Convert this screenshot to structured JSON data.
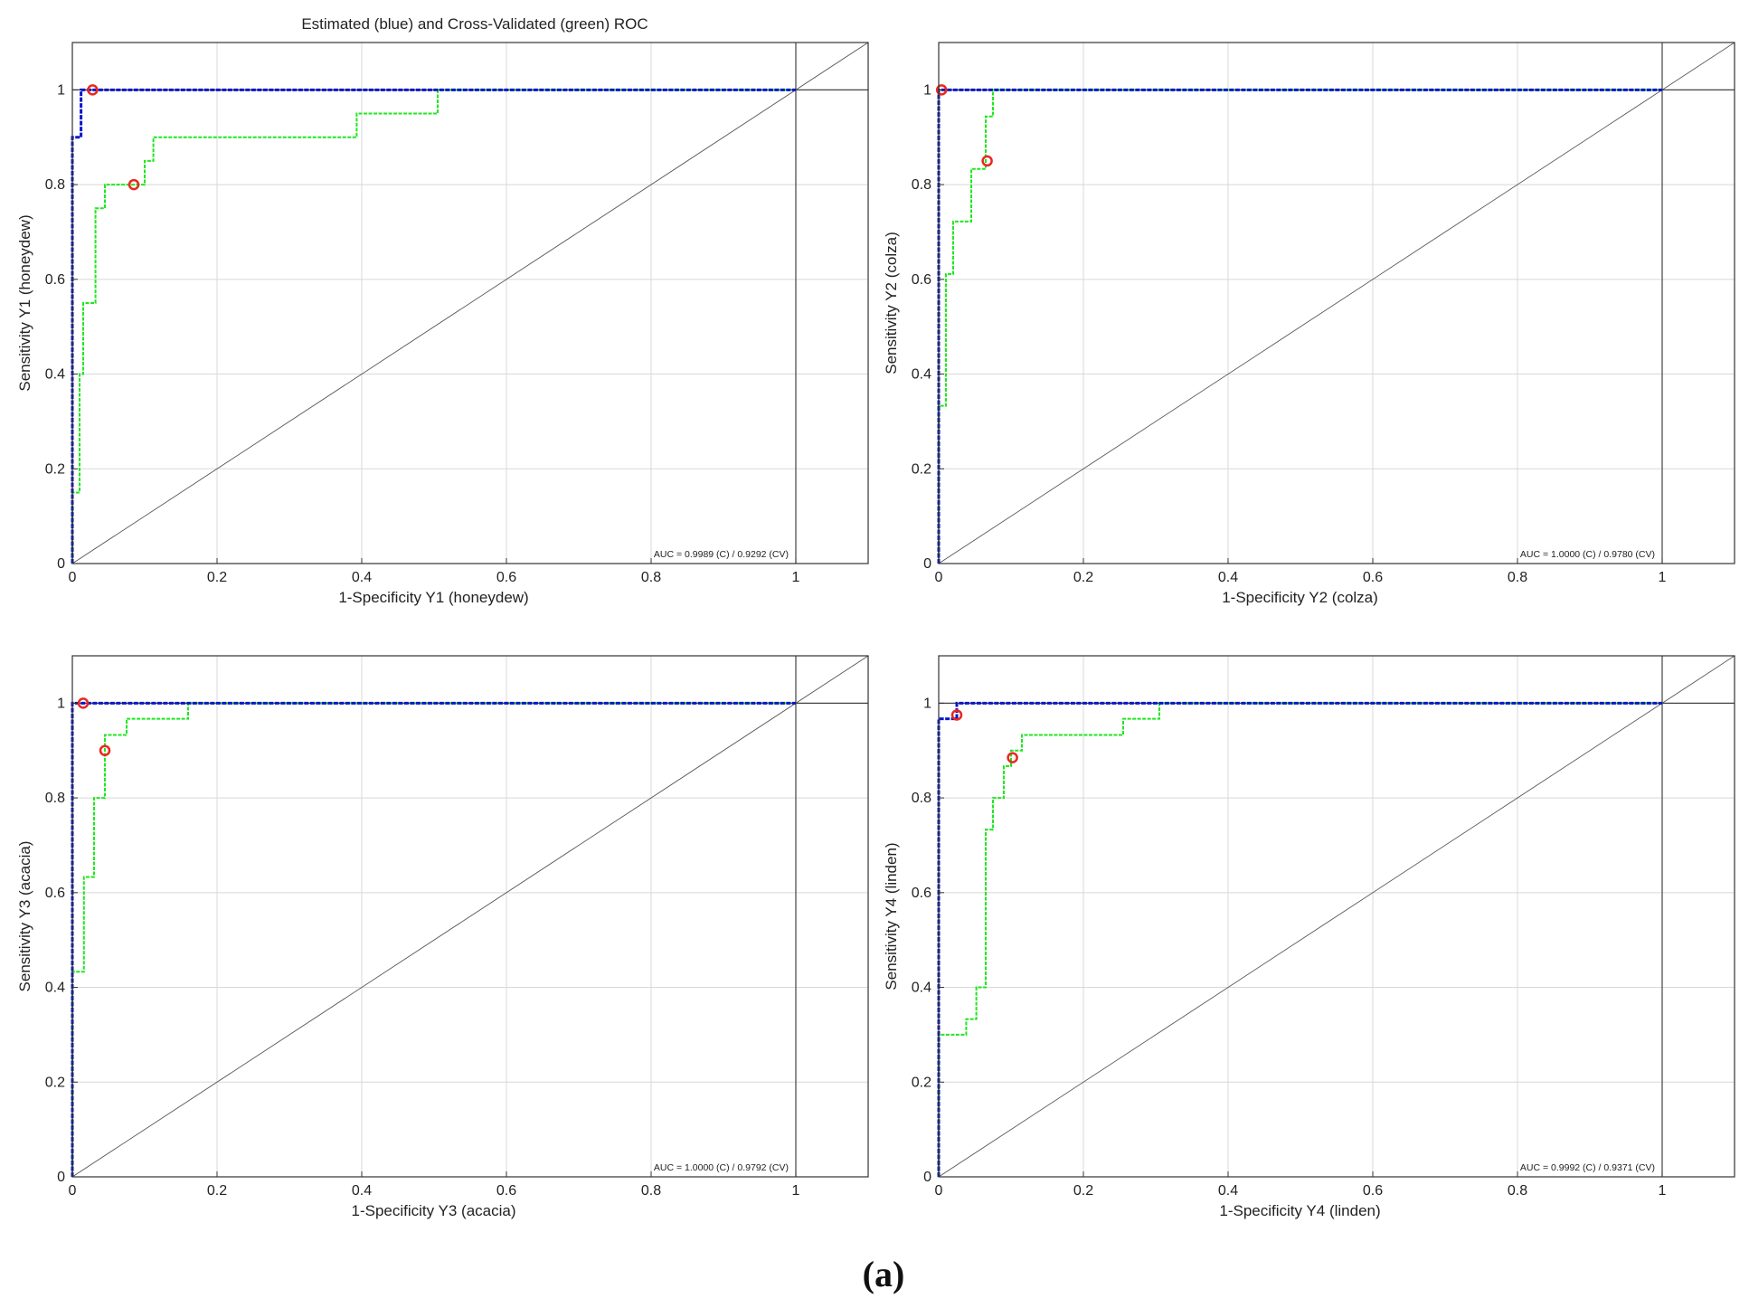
{
  "figure": {
    "title": "Estimated (blue) and Cross-Validated (green) ROC",
    "caption": "(a)",
    "colors": {
      "estimated": "#0a17c8",
      "cross_validated": "#1ee81e",
      "optimal_point": "#e8281e",
      "reference": "#555555",
      "grid": "#d8d8d8",
      "axes": "#333333"
    }
  },
  "chart_data": [
    {
      "type": "line",
      "title": "Estimated (blue) and Cross-Validated (green) ROC",
      "xlabel": "1-Specificity Y1 (honeydew)",
      "ylabel": "Sensitivity Y1 (honeydew)",
      "xlim": [
        0,
        1.1
      ],
      "ylim": [
        0,
        1.1
      ],
      "xticks": [
        0,
        0.2,
        0.4,
        0.6,
        0.8,
        1
      ],
      "yticks": [
        0,
        0.2,
        0.4,
        0.6,
        0.8,
        1
      ],
      "xtick_labels": [
        "0",
        "0.2",
        "0.4",
        "0.6",
        "0.8",
        "1"
      ],
      "ytick_labels": [
        "0",
        "0.2",
        "0.4",
        "0.6",
        "0.8",
        "1"
      ],
      "grid": true,
      "auc_text": "AUC = 0.9989 (C) / 0.9292 (CV)",
      "series": [
        {
          "name": "Estimated",
          "color": "#0a17c8",
          "x": [
            0,
            0,
            0.012,
            0.012,
            1
          ],
          "y": [
            0,
            0.9,
            0.9,
            1,
            1
          ]
        },
        {
          "name": "Cross-Validated",
          "color": "#1ee81e",
          "x": [
            0,
            0,
            0.01,
            0.01,
            0.015,
            0.015,
            0.032,
            0.032,
            0.045,
            0.045,
            0.1,
            0.1,
            0.112,
            0.112,
            0.135,
            0.135,
            0.393,
            0.393,
            0.505,
            0.505,
            1
          ],
          "y": [
            0,
            0.15,
            0.15,
            0.4,
            0.4,
            0.55,
            0.55,
            0.75,
            0.75,
            0.8,
            0.8,
            0.85,
            0.85,
            0.9,
            0.9,
            0.9,
            0.9,
            0.95,
            0.95,
            1,
            1
          ]
        }
      ],
      "optimal_points": [
        {
          "x": 0.028,
          "y": 1.0
        },
        {
          "x": 0.085,
          "y": 0.8
        }
      ]
    },
    {
      "type": "line",
      "xlabel": "1-Specificity Y2 (colza)",
      "ylabel": "Sensitivity Y2 (colza)",
      "xlim": [
        0,
        1.1
      ],
      "ylim": [
        0,
        1.1
      ],
      "xticks": [
        0,
        0.2,
        0.4,
        0.6,
        0.8,
        1
      ],
      "yticks": [
        0,
        0.2,
        0.4,
        0.6,
        0.8,
        1
      ],
      "xtick_labels": [
        "0",
        "0.2",
        "0.4",
        "0.6",
        "0.8",
        "1"
      ],
      "ytick_labels": [
        "0",
        "0.2",
        "0.4",
        "0.6",
        "0.8",
        "1"
      ],
      "grid": true,
      "auc_text": "AUC = 1.0000 (C) / 0.9780 (CV)",
      "series": [
        {
          "name": "Estimated",
          "color": "#0a17c8",
          "x": [
            0,
            0,
            1
          ],
          "y": [
            0,
            1,
            1
          ]
        },
        {
          "name": "Cross-Validated",
          "color": "#1ee81e",
          "x": [
            0,
            0,
            0.01,
            0.01,
            0.02,
            0.02,
            0.045,
            0.045,
            0.065,
            0.065,
            0.075,
            0.075,
            1
          ],
          "y": [
            0,
            0.333,
            0.333,
            0.611,
            0.611,
            0.722,
            0.722,
            0.833,
            0.833,
            0.944,
            0.944,
            1,
            1
          ]
        }
      ],
      "optimal_points": [
        {
          "x": 0.004,
          "y": 1.0
        },
        {
          "x": 0.067,
          "y": 0.85
        }
      ]
    },
    {
      "type": "line",
      "xlabel": "1-Specificity Y3 (acacia)",
      "ylabel": "Sensitivity Y3 (acacia)",
      "xlim": [
        0,
        1.1
      ],
      "ylim": [
        0,
        1.1
      ],
      "xticks": [
        0,
        0.2,
        0.4,
        0.6,
        0.8,
        1
      ],
      "yticks": [
        0,
        0.2,
        0.4,
        0.6,
        0.8,
        1
      ],
      "xtick_labels": [
        "0",
        "0.2",
        "0.4",
        "0.6",
        "0.8",
        "1"
      ],
      "ytick_labels": [
        "0",
        "0.2",
        "0.4",
        "0.6",
        "0.8",
        "1"
      ],
      "grid": true,
      "auc_text": "AUC = 1.0000 (C) / 0.9792 (CV)",
      "series": [
        {
          "name": "Estimated",
          "color": "#0a17c8",
          "x": [
            0,
            0,
            1
          ],
          "y": [
            0,
            1,
            1
          ]
        },
        {
          "name": "Cross-Validated",
          "color": "#1ee81e",
          "x": [
            0,
            0,
            0.016,
            0.016,
            0.03,
            0.03,
            0.045,
            0.045,
            0.075,
            0.075,
            0.16,
            0.16,
            1
          ],
          "y": [
            0,
            0.433,
            0.433,
            0.633,
            0.633,
            0.8,
            0.8,
            0.933,
            0.933,
            0.967,
            0.967,
            1,
            1
          ]
        }
      ],
      "optimal_points": [
        {
          "x": 0.015,
          "y": 1.0
        },
        {
          "x": 0.045,
          "y": 0.9
        }
      ]
    },
    {
      "type": "line",
      "xlabel": "1-Specificity Y4 (linden)",
      "ylabel": "Sensitivity Y4 (linden)",
      "xlim": [
        0,
        1.1
      ],
      "ylim": [
        0,
        1.1
      ],
      "xticks": [
        0,
        0.2,
        0.4,
        0.6,
        0.8,
        1
      ],
      "yticks": [
        0,
        0.2,
        0.4,
        0.6,
        0.8,
        1
      ],
      "xtick_labels": [
        "0",
        "0.2",
        "0.4",
        "0.6",
        "0.8",
        "1"
      ],
      "ytick_labels": [
        "0",
        "0.2",
        "0.4",
        "0.6",
        "0.8",
        "1"
      ],
      "grid": true,
      "auc_text": "AUC = 0.9992 (C) / 0.9371 (CV)",
      "series": [
        {
          "name": "Estimated",
          "color": "#0a17c8",
          "x": [
            0,
            0,
            0.025,
            0.025,
            1
          ],
          "y": [
            0,
            0.967,
            0.967,
            1,
            1
          ]
        },
        {
          "name": "Cross-Validated",
          "color": "#1ee81e",
          "x": [
            0,
            0,
            0.038,
            0.038,
            0.052,
            0.052,
            0.065,
            0.065,
            0.075,
            0.075,
            0.09,
            0.09,
            0.1,
            0.1,
            0.115,
            0.115,
            0.128,
            0.128,
            0.255,
            0.255,
            0.305,
            0.305,
            1
          ],
          "y": [
            0,
            0.3,
            0.3,
            0.333,
            0.333,
            0.4,
            0.4,
            0.733,
            0.733,
            0.8,
            0.8,
            0.867,
            0.867,
            0.9,
            0.9,
            0.933,
            0.933,
            0.933,
            0.933,
            0.967,
            0.967,
            1,
            1
          ]
        }
      ],
      "optimal_points": [
        {
          "x": 0.025,
          "y": 0.975
        },
        {
          "x": 0.102,
          "y": 0.885
        }
      ]
    }
  ]
}
